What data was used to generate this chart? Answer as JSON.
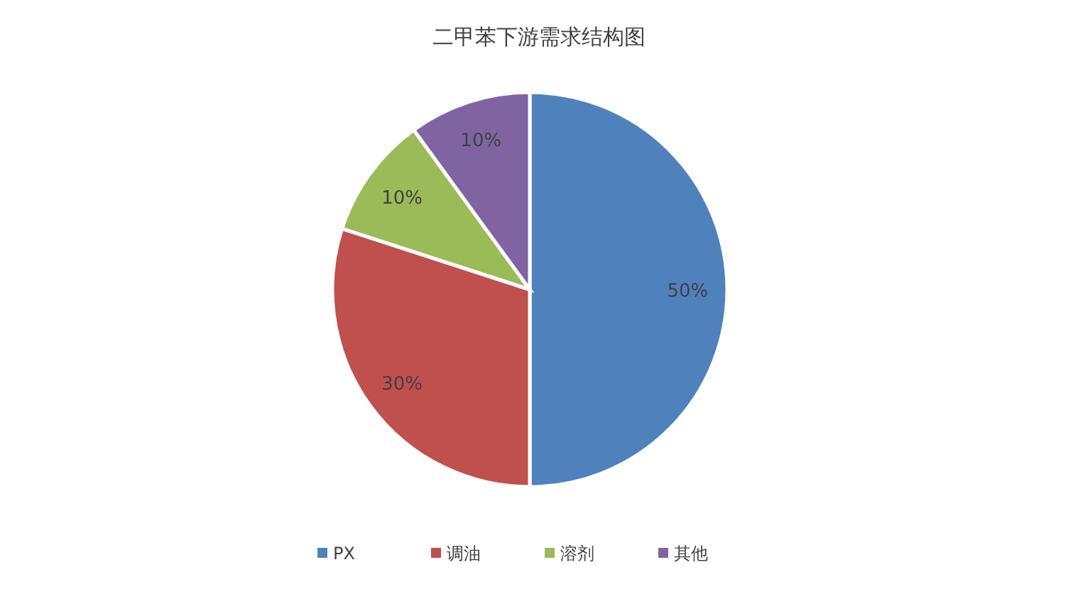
{
  "chart_data": {
    "type": "pie",
    "title": "二甲苯下游需求结构图",
    "categories": [
      "PX",
      "调油",
      "溶剂",
      "其他"
    ],
    "values": [
      50,
      30,
      10,
      10
    ],
    "colors": [
      "#4f81bd",
      "#c0504d",
      "#9bbb59",
      "#8064a2"
    ],
    "value_labels": [
      "50%",
      "30%",
      "10%",
      "10%"
    ],
    "legend": "bottom"
  }
}
